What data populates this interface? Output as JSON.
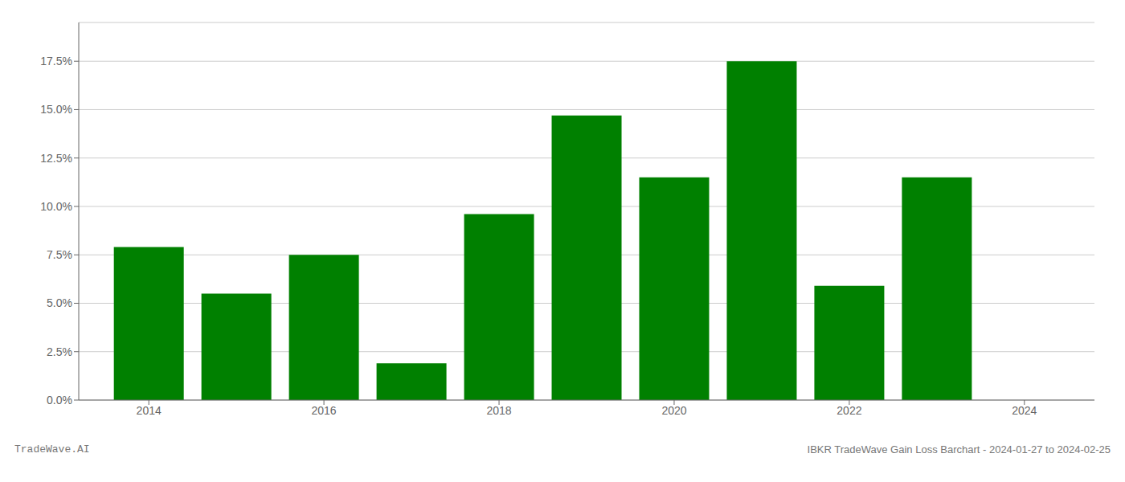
{
  "chart_data": {
    "type": "bar",
    "x": [
      2014,
      2015,
      2016,
      2017,
      2018,
      2019,
      2020,
      2021,
      2022,
      2023
    ],
    "values": [
      0.079,
      0.055,
      0.075,
      0.019,
      0.096,
      0.147,
      0.115,
      0.175,
      0.059,
      0.115
    ],
    "color": "#008000",
    "xlim": [
      2013.2,
      2024.8
    ],
    "xticks": [
      2014,
      2016,
      2018,
      2020,
      2022,
      2024
    ],
    "ylim": [
      0,
      0.195
    ],
    "yticks": [
      {
        "value": 0.0,
        "label": "0.0%"
      },
      {
        "value": 0.025,
        "label": "2.5%"
      },
      {
        "value": 0.05,
        "label": "5.0%"
      },
      {
        "value": 0.075,
        "label": "7.5%"
      },
      {
        "value": 0.1,
        "label": "10.0%"
      },
      {
        "value": 0.125,
        "label": "12.5%"
      },
      {
        "value": 0.15,
        "label": "15.0%"
      },
      {
        "value": 0.175,
        "label": "17.5%"
      }
    ],
    "grid": true,
    "annotations": [
      "TradeWave.AI",
      "IBKR TradeWave Gain Loss Barchart - 2024-01-27 to 2024-02-25"
    ]
  }
}
